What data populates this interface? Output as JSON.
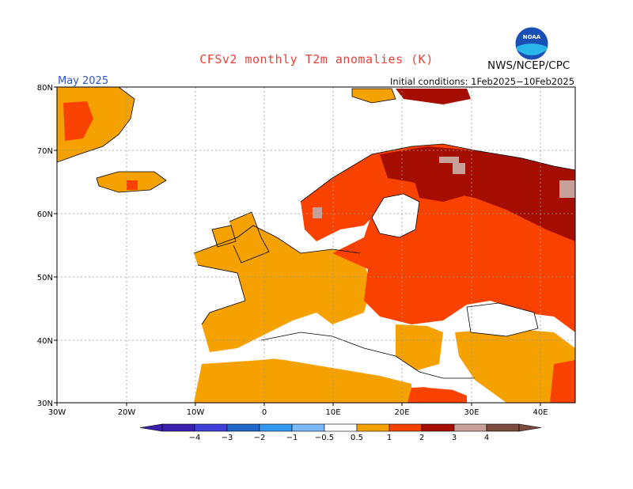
{
  "header": {
    "title": "CFSv2 monthly T2m anomalies (K)",
    "agency": "NWS/NCEP/CPC",
    "logo_text": "NOAA",
    "month": "May 2025",
    "initial_conditions": "Initial conditions: 1Feb2025−10Feb2025"
  },
  "map": {
    "region": "Europe",
    "lat_labels": [
      "80N",
      "70N",
      "60N",
      "50N",
      "40N",
      "30N"
    ],
    "lon_labels": [
      "30W",
      "20W",
      "10W",
      "0",
      "10E",
      "20E",
      "30E",
      "40E"
    ],
    "grid": "dotted",
    "colors": {
      "0.5-1": "#f5a100",
      "1-2": "#fa4200",
      "2-3": "#a50d00",
      "3-4": "#c8a09a",
      "land_no_anomaly": "#ffffff",
      "coastline": "#000000"
    }
  },
  "legend": {
    "labels": [
      "−4",
      "−3",
      "−2",
      "−1",
      "−0.5",
      "0.5",
      "1",
      "2",
      "3",
      "4"
    ],
    "colors": [
      "#3a1fae",
      "#3f3fd8",
      "#1f66c6",
      "#3399f0",
      "#7ab8f8",
      "#ffffff",
      "#f5a100",
      "#fa4200",
      "#a50d00",
      "#c8a09a",
      "#7a4a3c"
    ],
    "extend_low_color": "#3a1fae",
    "extend_high_color": "#7a4a3c"
  }
}
